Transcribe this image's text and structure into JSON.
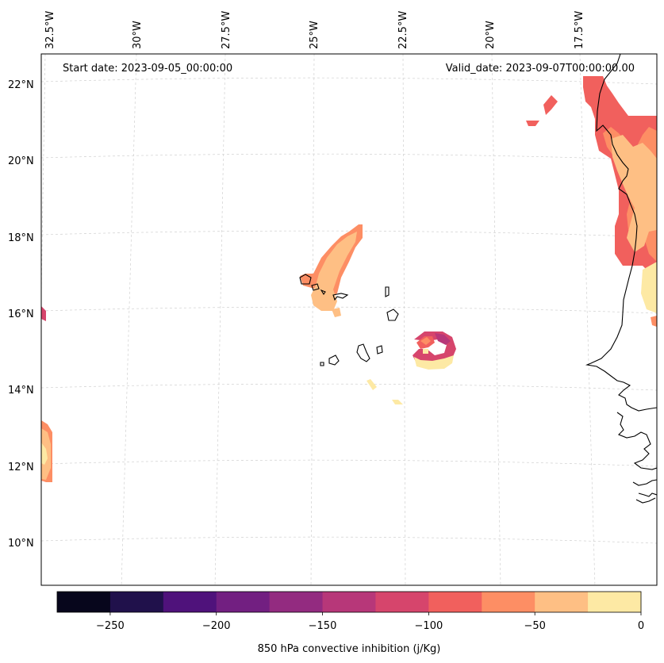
{
  "header": {
    "start_date": "Start date: 2023-09-05_00:00:00",
    "valid_date": "Valid_date: 2023-09-07T00:00:00.00"
  },
  "axes": {
    "lon_labels": [
      "32.5°W",
      "30°W",
      "27.5°W",
      "25°W",
      "22.5°W",
      "20°W",
      "17.5°W"
    ],
    "lat_labels": [
      "22°N",
      "20°N",
      "18°N",
      "16°N",
      "14°N",
      "12°N",
      "10°N"
    ]
  },
  "colorbar": {
    "label": "850 hPa convective inhibition (j/Kg)",
    "ticks": [
      "−250",
      "−200",
      "−150",
      "−100",
      "−50",
      "0"
    ],
    "colors": [
      "#07061c",
      "#20114b",
      "#4f127b",
      "#721f81",
      "#932b80",
      "#b73779",
      "#d6456c",
      "#f1605d",
      "#fd8e64",
      "#febf84",
      "#fde9a4"
    ]
  },
  "style": {
    "grid_color": "#cccccc",
    "coast_color": "#000000"
  }
}
